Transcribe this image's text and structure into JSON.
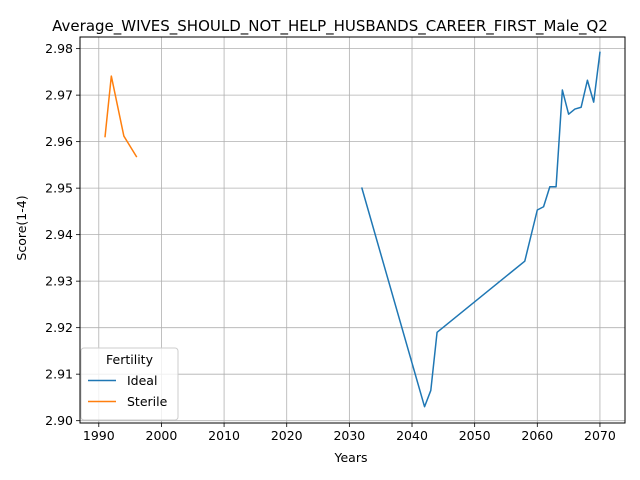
{
  "chart_data": {
    "type": "line",
    "title": "Average_WIVES_SHOULD_NOT_HELP_HUSBANDS_CAREER_FIRST_Male_Q2",
    "xlabel": "Years",
    "ylabel": "Score(1-4)",
    "xlim": [
      1987,
      2074
    ],
    "ylim": [
      2.8995,
      2.9825
    ],
    "xticks": [
      1990,
      2000,
      2010,
      2020,
      2030,
      2040,
      2050,
      2060,
      2070
    ],
    "yticks": [
      2.9,
      2.91,
      2.92,
      2.93,
      2.94,
      2.95,
      2.96,
      2.97,
      2.98
    ],
    "xtick_labels": [
      "1990",
      "2000",
      "2010",
      "2020",
      "2030",
      "2040",
      "2050",
      "2060",
      "2070"
    ],
    "ytick_labels": [
      "2.90",
      "2.91",
      "2.92",
      "2.93",
      "2.94",
      "2.95",
      "2.96",
      "2.97",
      "2.98"
    ],
    "grid": true,
    "legend": {
      "title": "Fertility",
      "placement": "lower-left"
    },
    "series": [
      {
        "name": "Ideal",
        "color": "#1f77b4",
        "x": [
          2032,
          2042,
          2043,
          2044,
          2058,
          2060,
          2061,
          2062,
          2063,
          2064,
          2065,
          2066,
          2067,
          2068,
          2069,
          2070
        ],
        "y": [
          2.95,
          2.903,
          2.9065,
          2.919,
          2.9343,
          2.9453,
          2.946,
          2.9503,
          2.9503,
          2.9711,
          2.9659,
          2.967,
          2.9674,
          2.9732,
          2.9685,
          2.9792
        ]
      },
      {
        "name": "Sterile",
        "color": "#ff7f0e",
        "x": [
          1991,
          1992,
          1994,
          1996
        ],
        "y": [
          2.9611,
          2.9741,
          2.9612,
          2.9568
        ]
      }
    ]
  }
}
